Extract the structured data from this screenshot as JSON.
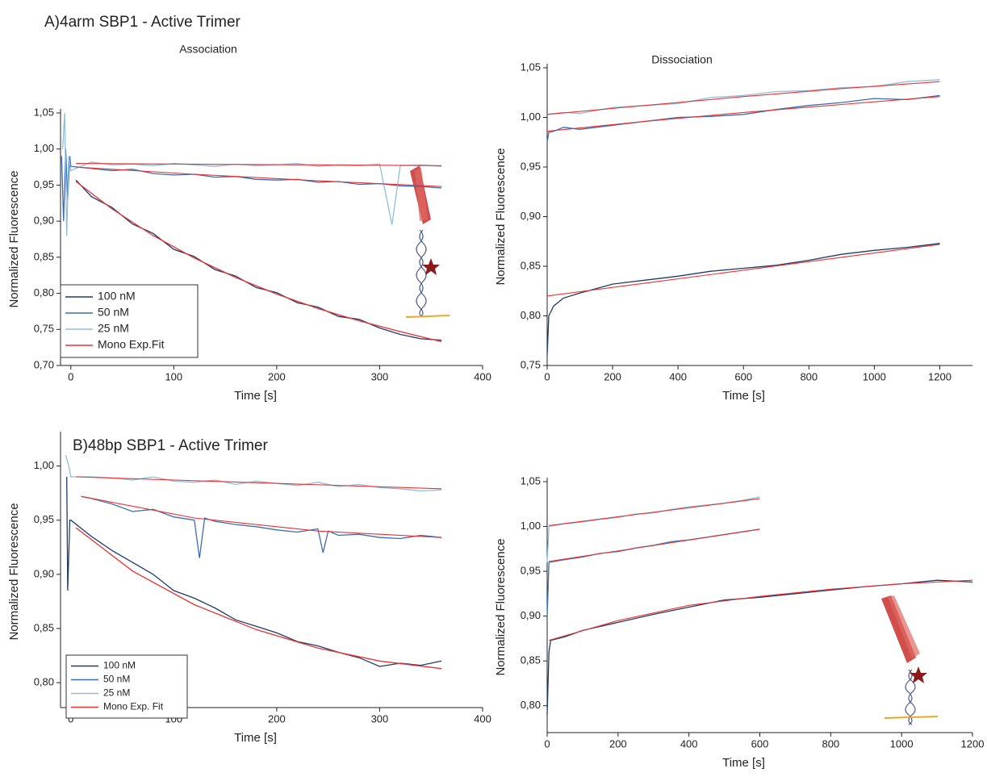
{
  "chart_data": [
    {
      "type": "line",
      "panel_title": "A)4arm SBP1 - Active Trimer",
      "title": "Association",
      "xlabel": "Time [s]",
      "ylabel": "Normalized Fluorescence",
      "xlim": [
        -10,
        400
      ],
      "ylim": [
        0.7,
        1.05
      ],
      "xticks": [
        0,
        100,
        200,
        300,
        400
      ],
      "yticks": [
        {
          "value": 0.7,
          "label": "0,70"
        },
        {
          "value": 0.75,
          "label": "0,75"
        },
        {
          "value": 0.8,
          "label": "0,80"
        },
        {
          "value": 0.85,
          "label": "0,85"
        },
        {
          "value": 0.9,
          "label": "0,90"
        },
        {
          "value": 0.95,
          "label": "0,95"
        },
        {
          "value": 1.0,
          "label": "1,00"
        },
        {
          "value": 1.05,
          "label": "1,05"
        }
      ],
      "legend": "lower left",
      "series": [
        {
          "name": "100 nM",
          "color": "#1f3a6e",
          "x": [
            5,
            20,
            40,
            60,
            80,
            100,
            120,
            140,
            160,
            180,
            200,
            220,
            240,
            260,
            280,
            300,
            320,
            340,
            360
          ],
          "values": [
            0.957,
            0.934,
            0.919,
            0.896,
            0.883,
            0.861,
            0.851,
            0.833,
            0.824,
            0.808,
            0.801,
            0.787,
            0.781,
            0.768,
            0.764,
            0.752,
            0.743,
            0.737,
            0.735
          ]
        },
        {
          "name": "50 nM",
          "color": "#3b6db5",
          "x": [
            -9,
            -7,
            -5,
            -3,
            -1,
            0,
            20,
            40,
            60,
            80,
            100,
            120,
            140,
            160,
            180,
            200,
            220,
            240,
            260,
            280,
            300,
            320,
            340,
            360
          ],
          "values": [
            0.99,
            0.9,
            1.0,
            0.93,
            0.99,
            0.976,
            0.973,
            0.97,
            0.972,
            0.966,
            0.964,
            0.965,
            0.961,
            0.962,
            0.958,
            0.957,
            0.958,
            0.954,
            0.955,
            0.951,
            0.952,
            0.949,
            0.948,
            0.946
          ]
        },
        {
          "name": "25 nM",
          "color": "#8fbde0",
          "x": [
            -8,
            -6,
            -4,
            -2,
            0,
            20,
            40,
            60,
            80,
            100,
            120,
            140,
            160,
            180,
            200,
            220,
            240,
            260,
            280,
            300,
            312,
            320,
            340,
            360
          ],
          "values": [
            1.0,
            1.05,
            0.88,
            0.99,
            0.97,
            0.982,
            0.978,
            0.979,
            0.977,
            0.98,
            0.978,
            0.976,
            0.979,
            0.977,
            0.978,
            0.98,
            0.976,
            0.978,
            0.977,
            0.979,
            0.895,
            0.977,
            0.978,
            0.976
          ]
        },
        {
          "name": "Mono Exp.Fit",
          "color": "#e8322e",
          "x": [
            5,
            40,
            80,
            120,
            160,
            200,
            240,
            280,
            320,
            360
          ],
          "values": [
            0.955,
            0.917,
            0.88,
            0.849,
            0.822,
            0.799,
            0.779,
            0.762,
            0.747,
            0.733
          ]
        },
        {
          "color": "#e8322e",
          "x": [
            5,
            120,
            240,
            360
          ],
          "values": [
            0.975,
            0.965,
            0.956,
            0.948
          ]
        },
        {
          "color": "#e8322e",
          "x": [
            5,
            360
          ],
          "values": [
            0.98,
            0.977
          ]
        }
      ]
    },
    {
      "type": "line",
      "title": "Dissociation",
      "xlabel": "Time [s]",
      "ylabel": "Normalized Fluorescence",
      "xlim": [
        0,
        1300
      ],
      "ylim": [
        0.75,
        1.05
      ],
      "xticks": [
        0,
        200,
        400,
        600,
        800,
        1000,
        1200
      ],
      "yticks": [
        {
          "value": 0.75,
          "label": "0,75"
        },
        {
          "value": 0.8,
          "label": "0,80"
        },
        {
          "value": 0.85,
          "label": "0,85"
        },
        {
          "value": 0.9,
          "label": "0,90"
        },
        {
          "value": 0.95,
          "label": "0,95"
        },
        {
          "value": 1.0,
          "label": "1,00"
        },
        {
          "value": 1.05,
          "label": "1,05"
        }
      ],
      "series": [
        {
          "color": "#8fbde0",
          "x": [
            0,
            50,
            100,
            200,
            300,
            400,
            500,
            600,
            700,
            800,
            900,
            1000,
            1100,
            1200
          ],
          "values": [
            1.003,
            1.005,
            1.004,
            1.01,
            1.012,
            1.014,
            1.02,
            1.022,
            1.026,
            1.027,
            1.03,
            1.031,
            1.036,
            1.038
          ]
        },
        {
          "color": "#3b6db5",
          "x": [
            0,
            5,
            20,
            50,
            100,
            200,
            300,
            400,
            500,
            600,
            700,
            800,
            900,
            1000,
            1100,
            1200
          ],
          "values": [
            0.975,
            0.985,
            0.986,
            0.99,
            0.988,
            0.992,
            0.996,
            1.0,
            1.001,
            1.003,
            1.008,
            1.012,
            1.015,
            1.019,
            1.018,
            1.022
          ]
        },
        {
          "color": "#1f3a6e",
          "x": [
            0,
            5,
            20,
            50,
            100,
            200,
            300,
            400,
            500,
            600,
            700,
            800,
            900,
            1000,
            1100,
            1200
          ],
          "values": [
            0.76,
            0.8,
            0.81,
            0.818,
            0.823,
            0.832,
            0.836,
            0.84,
            0.845,
            0.848,
            0.851,
            0.856,
            0.862,
            0.866,
            0.869,
            0.873
          ]
        },
        {
          "color": "#e8322e",
          "x": [
            0,
            300,
            600,
            900,
            1200
          ],
          "values": [
            1.003,
            1.012,
            1.021,
            1.029,
            1.036
          ]
        },
        {
          "color": "#e8322e",
          "x": [
            0,
            300,
            600,
            900,
            1200
          ],
          "values": [
            0.986,
            0.996,
            1.005,
            1.013,
            1.021
          ]
        },
        {
          "color": "#e8322e",
          "x": [
            0,
            300,
            600,
            900,
            1200
          ],
          "values": [
            0.82,
            0.833,
            0.846,
            0.859,
            0.872
          ]
        }
      ]
    },
    {
      "type": "line",
      "panel_title": "B)48bp SBP1 - Active Trimer",
      "xlabel": "Time [s]",
      "ylabel": "Normalized Fluorescence",
      "xlim": [
        -10,
        400
      ],
      "ylim": [
        0.777,
        1.028
      ],
      "xticks": [
        0,
        100,
        200,
        300,
        400
      ],
      "yticks": [
        {
          "value": 0.8,
          "label": "0,80"
        },
        {
          "value": 0.85,
          "label": "0,85"
        },
        {
          "value": 0.9,
          "label": "0,90"
        },
        {
          "value": 0.95,
          "label": "0,95"
        },
        {
          "value": 1.0,
          "label": "1,00"
        }
      ],
      "legend": "lower left",
      "series": [
        {
          "name": "100 nM",
          "color": "#1f3a6e",
          "x": [
            -4,
            -3,
            -1,
            0,
            20,
            40,
            60,
            80,
            100,
            120,
            140,
            160,
            180,
            200,
            220,
            240,
            260,
            280,
            300,
            320,
            340,
            360
          ],
          "values": [
            0.99,
            0.885,
            0.95,
            0.95,
            0.935,
            0.922,
            0.911,
            0.9,
            0.885,
            0.878,
            0.869,
            0.858,
            0.852,
            0.846,
            0.838,
            0.834,
            0.828,
            0.823,
            0.815,
            0.818,
            0.816,
            0.82
          ]
        },
        {
          "name": "50 nM",
          "color": "#3b6db5",
          "x": [
            10,
            20,
            40,
            60,
            80,
            100,
            120,
            125,
            130,
            140,
            160,
            180,
            200,
            220,
            240,
            245,
            250,
            260,
            280,
            300,
            320,
            340,
            360
          ],
          "values": [
            0.972,
            0.97,
            0.965,
            0.958,
            0.96,
            0.953,
            0.95,
            0.915,
            0.952,
            0.949,
            0.946,
            0.944,
            0.941,
            0.939,
            0.942,
            0.92,
            0.94,
            0.936,
            0.937,
            0.934,
            0.933,
            0.936,
            0.934
          ]
        },
        {
          "name": "25 nM",
          "color": "#8fbde0",
          "x": [
            -5,
            -2,
            0,
            20,
            40,
            60,
            80,
            100,
            120,
            140,
            160,
            180,
            200,
            220,
            240,
            260,
            280,
            300,
            320,
            340,
            360
          ],
          "values": [
            1.01,
            1.0,
            0.99,
            0.99,
            0.989,
            0.987,
            0.99,
            0.986,
            0.985,
            0.987,
            0.983,
            0.986,
            0.984,
            0.982,
            0.985,
            0.981,
            0.983,
            0.98,
            0.979,
            0.977,
            0.978
          ]
        },
        {
          "name": "Mono Exp. Fit",
          "color": "#e8322e",
          "x": [
            5,
            60,
            120,
            180,
            240,
            300,
            360
          ],
          "values": [
            0.943,
            0.903,
            0.872,
            0.849,
            0.832,
            0.82,
            0.813
          ]
        },
        {
          "color": "#e8322e",
          "x": [
            10,
            120,
            240,
            360
          ],
          "values": [
            0.972,
            0.952,
            0.94,
            0.934
          ]
        },
        {
          "color": "#e8322e",
          "x": [
            5,
            360
          ],
          "values": [
            0.99,
            0.979
          ]
        }
      ]
    },
    {
      "type": "line",
      "xlabel": "Time [s]",
      "ylabel": "Normalized Fluorescence",
      "xlim": [
        0,
        1200
      ],
      "ylim": [
        0.77,
        1.05
      ],
      "xticks": [
        0,
        200,
        400,
        600,
        800,
        1000,
        1200
      ],
      "yticks": [
        {
          "value": 0.8,
          "label": "0,80"
        },
        {
          "value": 0.85,
          "label": "0,85"
        },
        {
          "value": 0.9,
          "label": "0,90"
        },
        {
          "value": 0.95,
          "label": "0,95"
        },
        {
          "value": 1.0,
          "label": "1,00"
        },
        {
          "value": 1.05,
          "label": "1,05"
        }
      ],
      "series": [
        {
          "color": "#8fbde0",
          "x": [
            0,
            5,
            50,
            100,
            150,
            200,
            250,
            300,
            350,
            400,
            450,
            500,
            550,
            600
          ],
          "values": [
            0.96,
            1.0,
            1.003,
            1.005,
            1.008,
            1.01,
            1.014,
            1.015,
            1.019,
            1.022,
            1.024,
            1.026,
            1.029,
            1.033
          ]
        },
        {
          "color": "#3b6db5",
          "x": [
            0,
            5,
            50,
            100,
            150,
            200,
            250,
            300,
            350,
            400,
            450,
            500,
            550,
            600
          ],
          "values": [
            0.9,
            0.96,
            0.963,
            0.966,
            0.97,
            0.972,
            0.976,
            0.979,
            0.983,
            0.985,
            0.988,
            0.991,
            0.994,
            0.997
          ]
        },
        {
          "color": "#1f3a6e",
          "x": [
            0,
            5,
            10,
            50,
            100,
            200,
            300,
            400,
            500,
            600,
            700,
            800,
            900,
            1000,
            1100,
            1200
          ],
          "values": [
            0.79,
            0.86,
            0.873,
            0.877,
            0.884,
            0.893,
            0.902,
            0.91,
            0.918,
            0.921,
            0.925,
            0.929,
            0.933,
            0.936,
            0.94,
            0.938
          ]
        },
        {
          "color": "#e8322e",
          "x": [
            5,
            600
          ],
          "values": [
            1.001,
            1.031
          ]
        },
        {
          "color": "#e8322e",
          "x": [
            5,
            600
          ],
          "values": [
            0.961,
            0.997
          ]
        },
        {
          "color": "#e8322e",
          "x": [
            5,
            200,
            400,
            600,
            800,
            1000,
            1200
          ],
          "values": [
            0.873,
            0.895,
            0.912,
            0.922,
            0.93,
            0.936,
            0.94
          ]
        }
      ]
    }
  ]
}
